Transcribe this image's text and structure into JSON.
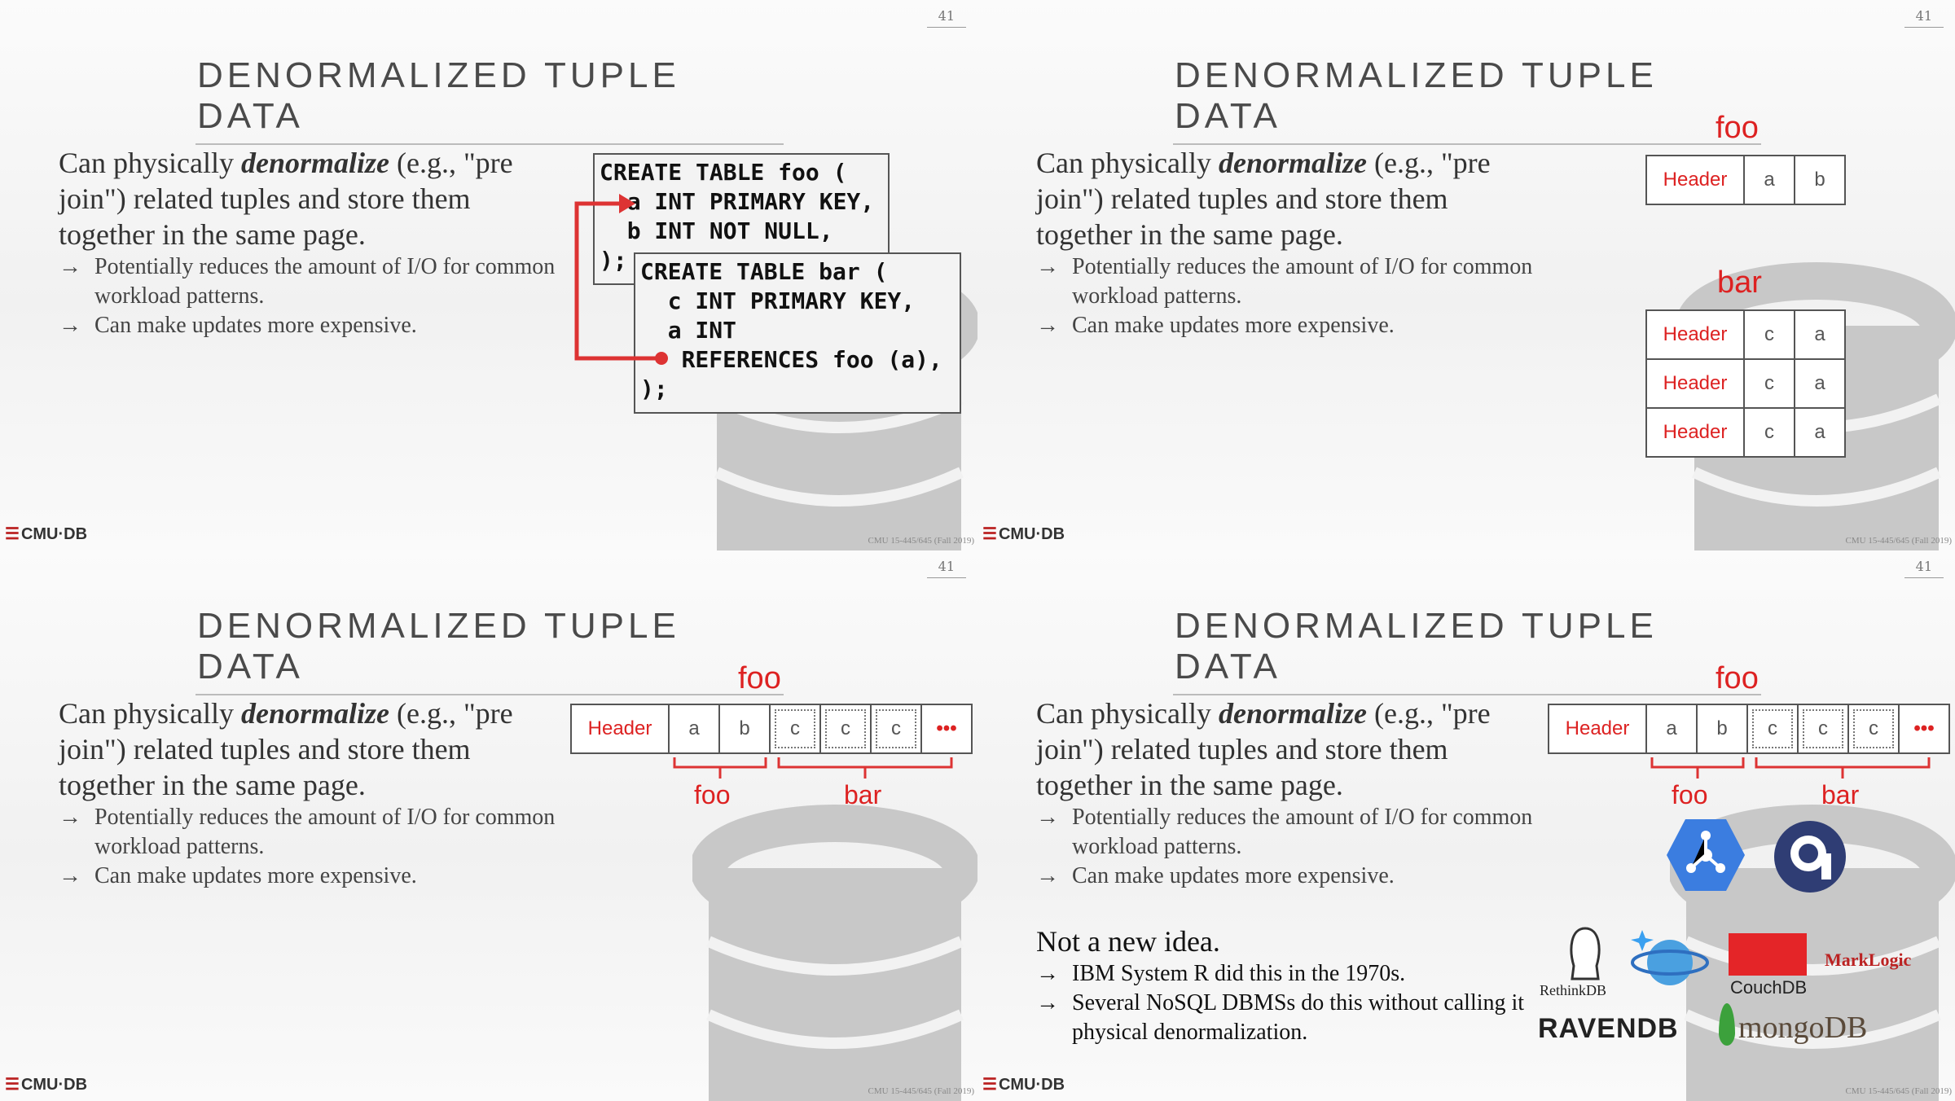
{
  "page_number": "41",
  "title": "DENORMALIZED TUPLE DATA",
  "lead": {
    "pre": "Can physically ",
    "em": "denormalize",
    "post": " (e.g., \"pre join\") related tuples and store them together in the same page."
  },
  "bullets": [
    "Potentially reduces the amount of I/O for common workload patterns.",
    "Can make updates more expensive."
  ],
  "arrow": "→",
  "logo": "CMU·DB",
  "footer": "CMU 15-445/645 (Fall 2019)",
  "code_foo": [
    "CREATE TABLE foo (",
    "  a INT PRIMARY KEY,",
    "  b INT NOT NULL,",
    ");"
  ],
  "code_bar": [
    "CREATE TABLE bar (",
    "  c INT PRIMARY KEY,",
    "  a INT",
    "   REFERENCES foo (a),",
    ");"
  ],
  "labels": {
    "foo": "foo",
    "bar": "bar",
    "header": "Header",
    "a": "a",
    "b": "b",
    "c": "c",
    "dots": "•••"
  },
  "extra": {
    "heading": "Not a new idea.",
    "bullets": [
      "IBM System R did this in the 1970s.",
      "Several NoSQL DBMSs do this without calling it physical denormalization."
    ]
  },
  "product_logos": [
    "RethinkDB",
    "CouchDB",
    "MarkLogic",
    "RAVENDB",
    "mongoDB"
  ]
}
